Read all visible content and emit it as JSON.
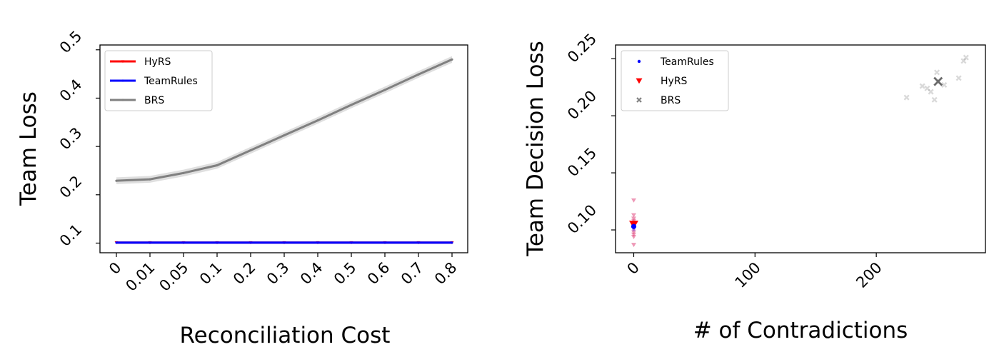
{
  "chart_data": [
    {
      "type": "line",
      "xlabel": "Reconciliation Cost",
      "ylabel": "Team Loss",
      "categories": [
        "0",
        "0.01",
        "0.05",
        "0.1",
        "0.2",
        "0.3",
        "0.4",
        "0.5",
        "0.6",
        "0.7",
        "0.8"
      ],
      "ylim": [
        0.08,
        0.51
      ],
      "yticks": [
        "0.1",
        "0.2",
        "0.3",
        "0.4",
        "0.5"
      ],
      "ytick_values": [
        0.1,
        0.2,
        0.3,
        0.4,
        0.5
      ],
      "legend_position": "upper-left",
      "grid": false,
      "series": [
        {
          "name": "HyRS",
          "color": "#ff0000",
          "marker": "tri-down",
          "values": [
            0.101,
            0.101,
            0.101,
            0.101,
            0.101,
            0.101,
            0.101,
            0.101,
            0.101,
            0.101,
            0.101
          ]
        },
        {
          "name": "TeamRules",
          "color": "#0000ff",
          "marker": "dot",
          "values": [
            0.101,
            0.101,
            0.101,
            0.101,
            0.101,
            0.101,
            0.101,
            0.101,
            0.101,
            0.101,
            0.101
          ]
        },
        {
          "name": "BRS",
          "color": "#808080",
          "marker": "dot",
          "band": 0.007,
          "values": [
            0.229,
            0.232,
            0.245,
            0.261,
            0.292,
            0.323,
            0.354,
            0.386,
            0.417,
            0.449,
            0.48
          ]
        }
      ]
    },
    {
      "type": "scatter",
      "xlabel": "# of Contradictions",
      "ylabel": "Team Decision Loss",
      "xlim": [
        -15,
        290
      ],
      "ylim": [
        0.08,
        0.262
      ],
      "xticks": [
        "0",
        "100",
        "200"
      ],
      "xtick_values": [
        0,
        100,
        200
      ],
      "yticks": [
        "0.10",
        "0.15",
        "0.20",
        "0.25"
      ],
      "ytick_values": [
        0.1,
        0.15,
        0.2,
        0.25
      ],
      "legend_position": "upper-left",
      "grid": false,
      "series": [
        {
          "name": "TeamRules",
          "color": "#0000ff",
          "marker": "dot",
          "mean": {
            "x": 0,
            "y": 0.103
          },
          "points": [
            {
              "x": 0,
              "y": 0.1
            },
            {
              "x": 0,
              "y": 0.102
            },
            {
              "x": 0,
              "y": 0.104
            },
            {
              "x": 0,
              "y": 0.106
            }
          ]
        },
        {
          "name": "HyRS",
          "color": "#ff0000",
          "marker": "tri-down",
          "mean": {
            "x": 0,
            "y": 0.105
          },
          "points": [
            {
              "x": 0,
              "y": 0.126
            },
            {
              "x": 0,
              "y": 0.113
            },
            {
              "x": 0,
              "y": 0.11
            },
            {
              "x": 0,
              "y": 0.108
            },
            {
              "x": 0,
              "y": 0.106
            },
            {
              "x": 0,
              "y": 0.104
            },
            {
              "x": 0,
              "y": 0.101
            },
            {
              "x": 0,
              "y": 0.098
            },
            {
              "x": 0,
              "y": 0.096
            },
            {
              "x": 0,
              "y": 0.094
            },
            {
              "x": 0,
              "y": 0.087
            }
          ]
        },
        {
          "name": "BRS",
          "color": "#808080",
          "marker": "x",
          "mean": {
            "x": 251,
            "y": 0.23
          },
          "points": [
            {
              "x": 225,
              "y": 0.216
            },
            {
              "x": 238,
              "y": 0.226
            },
            {
              "x": 242,
              "y": 0.224
            },
            {
              "x": 245,
              "y": 0.221
            },
            {
              "x": 248,
              "y": 0.214
            },
            {
              "x": 250,
              "y": 0.238
            },
            {
              "x": 256,
              "y": 0.227
            },
            {
              "x": 268,
              "y": 0.233
            },
            {
              "x": 272,
              "y": 0.248
            },
            {
              "x": 274,
              "y": 0.251
            }
          ]
        }
      ]
    }
  ]
}
